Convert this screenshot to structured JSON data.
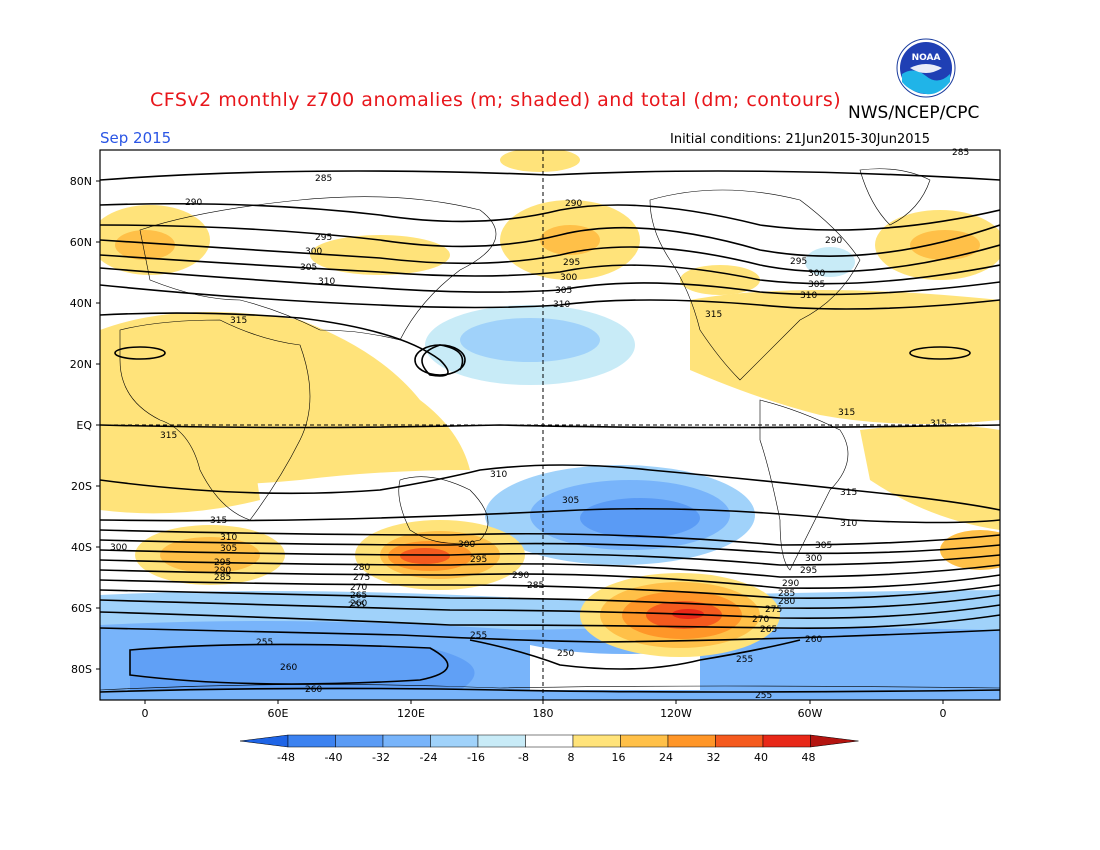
{
  "header": {
    "title": "CFSv2 monthly z700 anomalies (m; shaded) and total (dm; contours)",
    "agency": "NWS/NCEP/CPC",
    "month": "Sep 2015",
    "initial_conditions": "Initial conditions: 21Jun2015-30Jun2015",
    "logo_text": "NOAA"
  },
  "map": {
    "lat_labels": [
      "80N",
      "60N",
      "40N",
      "20N",
      "EQ",
      "20S",
      "40S",
      "60S",
      "80S"
    ],
    "lon_labels": [
      "0",
      "60E",
      "120E",
      "180",
      "120W",
      "60W",
      "0"
    ],
    "contour_labels": [
      "285",
      "290",
      "295",
      "300",
      "305",
      "310",
      "315",
      "280",
      "275",
      "270",
      "265",
      "260",
      "255",
      "250"
    ]
  },
  "colorbar": {
    "labels": [
      "-48",
      "-40",
      "-32",
      "-24",
      "-16",
      "-8",
      "8",
      "16",
      "24",
      "32",
      "40",
      "48"
    ],
    "colors": [
      "#1e64e6",
      "#3c82f0",
      "#5a9bf5",
      "#78b4fa",
      "#a0d2fa",
      "#c8ebf7",
      "#ffffff",
      "#ffe37a",
      "#ffc048",
      "#ff9628",
      "#f55a1e",
      "#e82818",
      "#b41410"
    ]
  }
}
